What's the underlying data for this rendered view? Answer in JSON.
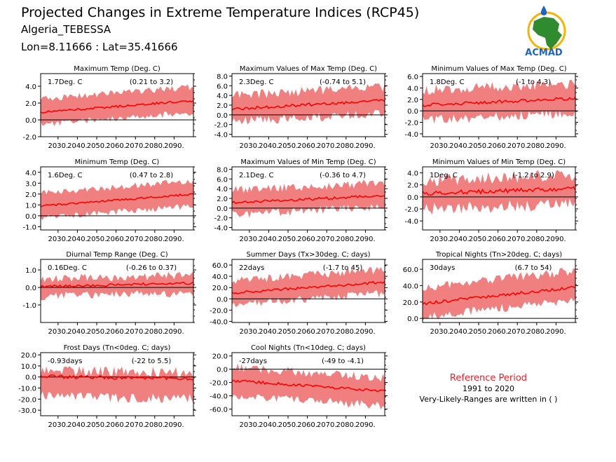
{
  "header": {
    "title": "Projected Changes in Extreme Temperature Indices (RCP45)",
    "location": "Algeria_TEBESSA",
    "coords": "Lon=8.11666 : Lat=35.41666"
  },
  "logo": {
    "text": "ACMAD"
  },
  "reference": {
    "title": "Reference Period",
    "period": "1991 to 2020",
    "note": "Very-Likely-Ranges are written in ( )"
  },
  "colors": {
    "band": "#f08080",
    "line": "#ff0000",
    "axis": "#000000",
    "title_red": "#e8202a"
  },
  "chart_data": [
    {
      "type": "area",
      "title": "Maximum Temp (Deg. C)",
      "mean_label": "1.7Deg. C",
      "range_label": "(0.21 to 3.2)",
      "x_ticks": [
        "2030.",
        "2040.",
        "2050.",
        "2060.",
        "2070.",
        "2080.",
        "2090."
      ],
      "y_ticks": [
        -2.0,
        0.0,
        2.0,
        4.0
      ],
      "ylim": [
        -2,
        5.5
      ],
      "x": [
        2021,
        2100
      ],
      "mean_start": 0.9,
      "mean_end": 2.3,
      "band_low_offset": -1.4,
      "band_high_offset": 1.6,
      "noise": 0.5
    },
    {
      "type": "area",
      "title": "Maximum Values of Max Temp (Deg. C)",
      "mean_label": "2.3Deg. C",
      "range_label": "(-0.74 to 5.1)",
      "x_ticks": [
        "2030.",
        "2040.",
        "2050.",
        "2060.",
        "2070.",
        "2080.",
        "2090."
      ],
      "y_ticks": [
        -4.0,
        -2.0,
        0.0,
        2.0,
        4.0,
        6.0,
        8.0
      ],
      "ylim": [
        -4.5,
        8.5
      ],
      "x": [
        2021,
        2100
      ],
      "mean_start": 1.2,
      "mean_end": 3.0,
      "band_low_offset": -2.6,
      "band_high_offset": 2.8,
      "noise": 1.2
    },
    {
      "type": "area",
      "title": "Minimum Values of Max Temp (Deg. C)",
      "mean_label": "1.8Deg. C",
      "range_label": "(-1 to 4.3)",
      "x_ticks": [
        "2030.",
        "2040.",
        "2050.",
        "2060.",
        "2070.",
        "2080.",
        "2090."
      ],
      "y_ticks": [
        -4.0,
        -2.0,
        0.0,
        2.0,
        4.0,
        6.0
      ],
      "ylim": [
        -4.5,
        6.5
      ],
      "x": [
        2021,
        2100
      ],
      "mean_start": 1.0,
      "mean_end": 2.2,
      "band_low_offset": -2.6,
      "band_high_offset": 2.6,
      "noise": 1.1
    },
    {
      "type": "area",
      "title": "Minimum Temp (Deg. C)",
      "mean_label": "1.6Deg. C",
      "range_label": "(0.47 to 2.8)",
      "x_ticks": [
        "2030.",
        "2040.",
        "2050.",
        "2060.",
        "2070.",
        "2080.",
        "2090."
      ],
      "y_ticks": [
        -1.0,
        0.0,
        1.0,
        2.0,
        3.0,
        4.0
      ],
      "ylim": [
        -1.3,
        4.5
      ],
      "x": [
        2021,
        2100
      ],
      "mean_start": 0.9,
      "mean_end": 2.0,
      "band_low_offset": -1.1,
      "band_high_offset": 1.2,
      "noise": 0.35
    },
    {
      "type": "area",
      "title": "Maximum Values of Min Temp (Deg. C)",
      "mean_label": "2.1Deg. C",
      "range_label": "(-0.36 to 4.7)",
      "x_ticks": [
        "2030.",
        "2040.",
        "2050.",
        "2060.",
        "2070.",
        "2080.",
        "2090."
      ],
      "y_ticks": [
        -4.0,
        -2.0,
        0.0,
        2.0,
        4.0,
        6.0,
        8.0
      ],
      "ylim": [
        -4.5,
        8.5
      ],
      "x": [
        2021,
        2100
      ],
      "mean_start": 1.1,
      "mean_end": 2.6,
      "band_low_offset": -2.4,
      "band_high_offset": 2.6,
      "noise": 1.1
    },
    {
      "type": "area",
      "title": "Minimum Values of Min Temp (Deg. C)",
      "mean_label": "1Deg. C",
      "range_label": "(-1.2 to 2.9)",
      "x_ticks": [
        "2030.",
        "2040.",
        "2050.",
        "2060.",
        "2070.",
        "2080.",
        "2090."
      ],
      "y_ticks": [
        -4.0,
        -2.0,
        0.0,
        2.0,
        4.0
      ],
      "ylim": [
        -5.5,
        5.0
      ],
      "x": [
        2021,
        2100
      ],
      "mean_start": 0.6,
      "mean_end": 1.4,
      "band_low_offset": -2.6,
      "band_high_offset": 2.2,
      "noise": 1.3
    },
    {
      "type": "area",
      "title": "Diurnal Temp Range (Deg. C)",
      "mean_label": "0.16Deg. C",
      "range_label": "(-0.26 to 0.37)",
      "x_ticks": [
        "2030.",
        "2040.",
        "2050.",
        "2060.",
        "2070.",
        "2080.",
        "2090."
      ],
      "y_ticks": [
        -1.0,
        0.0,
        1.0
      ],
      "ylim": [
        -2.0,
        1.6
      ],
      "x": [
        2021,
        2100
      ],
      "mean_start": 0.05,
      "mean_end": 0.25,
      "band_low_offset": -0.55,
      "band_high_offset": 0.45,
      "noise": 0.3
    },
    {
      "type": "area",
      "title": "Summer Days (Tx>30deg. C; days)",
      "mean_label": "22days",
      "range_label": "(-1.7 to 45)",
      "x_ticks": [
        "2030.",
        "2040.",
        "2050.",
        "2060.",
        "2070.",
        "2080.",
        "2090."
      ],
      "y_ticks": [
        -40.0,
        -20.0,
        0.0,
        20.0,
        40.0,
        60.0
      ],
      "ylim": [
        -42,
        70
      ],
      "x": [
        2021,
        2100
      ],
      "mean_start": 10,
      "mean_end": 30,
      "band_low_offset": -20,
      "band_high_offset": 22,
      "noise": 9
    },
    {
      "type": "area",
      "title": "Tropical Nights (Tn>20deg. C; days)",
      "mean_label": "30days",
      "range_label": "(6.7 to 54)",
      "x_ticks": [
        "2030.",
        "2040.",
        "2050.",
        "2060.",
        "2070.",
        "2080.",
        "2090."
      ],
      "y_ticks": [
        0.0,
        20.0,
        40.0,
        60.0
      ],
      "ylim": [
        -5,
        72
      ],
      "x": [
        2021,
        2100
      ],
      "mean_start": 18,
      "mean_end": 38,
      "band_low_offset": -16,
      "band_high_offset": 20,
      "noise": 7
    },
    {
      "type": "area",
      "title": "Frost Days (Tn<0deg. C; days)",
      "mean_label": "-0.93days",
      "range_label": "(-22 to 5.5)",
      "x_ticks": [
        "2030.",
        "2040.",
        "2050.",
        "2060.",
        "2070.",
        "2080.",
        "2090."
      ],
      "y_ticks": [
        -30.0,
        -20.0,
        -10.0,
        0.0,
        10.0,
        20.0
      ],
      "ylim": [
        -35,
        22
      ],
      "x": [
        2021,
        2100
      ],
      "mean_start": 0.5,
      "mean_end": -1.5,
      "band_low_offset": -18,
      "band_high_offset": 5.5,
      "noise": 6
    },
    {
      "type": "area",
      "title": "Cool Nights (Tn<10deg. C; days)",
      "mean_label": "-27days",
      "range_label": "(-49 to -4.1)",
      "x_ticks": [
        "2030.",
        "2040.",
        "2050.",
        "2060.",
        "2070.",
        "2080.",
        "2090."
      ],
      "y_ticks": [
        -60.0,
        -40.0,
        -20.0,
        0.0,
        20.0
      ],
      "ylim": [
        -70,
        25
      ],
      "x": [
        2021,
        2100
      ],
      "mean_start": -17,
      "mean_end": -33,
      "band_low_offset": -22,
      "band_high_offset": 20,
      "noise": 8
    }
  ]
}
